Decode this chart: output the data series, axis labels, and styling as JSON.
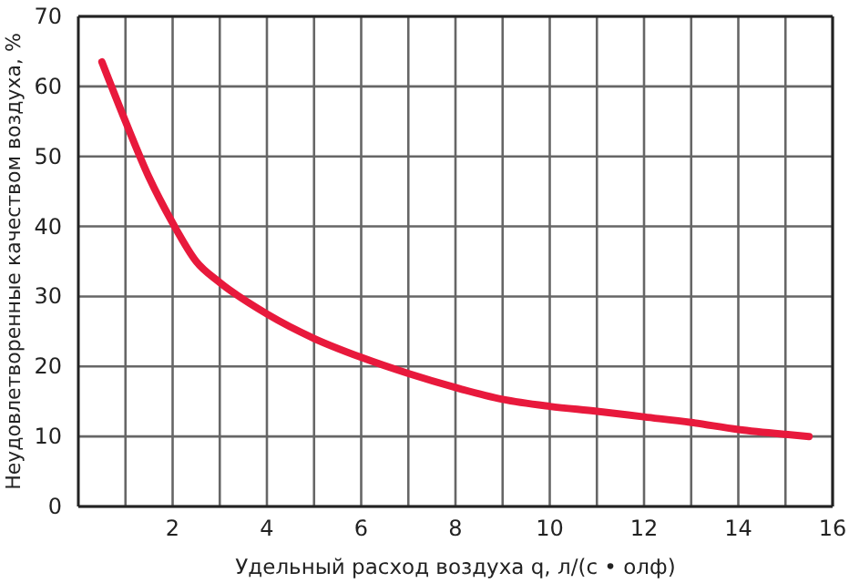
{
  "chart_data": {
    "type": "line",
    "xlabel": "Удельный расход воздуха q, л/(с • олф)",
    "ylabel": "Неудовлетворенные качеством воздуха, %",
    "x": [
      0.5,
      1,
      1.5,
      2,
      2.5,
      3,
      4,
      5,
      6,
      7,
      8,
      9,
      10,
      11,
      12,
      13,
      14,
      15,
      15.5
    ],
    "series": [
      {
        "color": "#e8193c",
        "values": [
          63.5,
          55,
          47,
          40.5,
          35,
          32,
          27.5,
          24,
          21.3,
          19,
          17,
          15.3,
          14.3,
          13.6,
          12.8,
          12,
          11,
          10.3,
          10
        ]
      }
    ],
    "xlim": [
      0,
      16
    ],
    "xticks": [
      {
        "value": 1,
        "label": null
      },
      2,
      {
        "value": 3,
        "label": null
      },
      4,
      {
        "value": 5,
        "label": null
      },
      6,
      {
        "value": 7,
        "label": null
      },
      8,
      {
        "value": 9,
        "label": null
      },
      10,
      {
        "value": 11,
        "label": null
      },
      12,
      {
        "value": 13,
        "label": null
      },
      14,
      {
        "value": 15,
        "label": null
      },
      16
    ],
    "ylim": [
      0,
      70
    ],
    "yticks": [
      0,
      10,
      20,
      30,
      40,
      50,
      60,
      70
    ],
    "grid": true,
    "marker": "none",
    "line_style": "solid"
  }
}
